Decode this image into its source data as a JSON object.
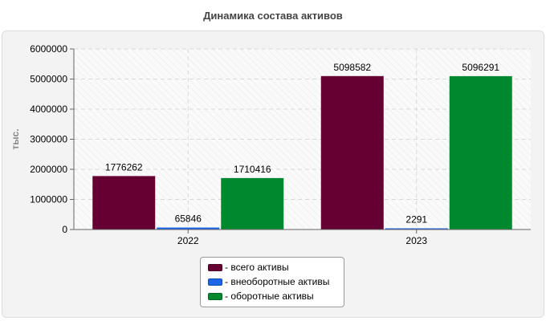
{
  "chart_data": {
    "type": "bar",
    "title": "Динамика состава активов",
    "ylabel": "тыс.",
    "xlabel": "",
    "categories": [
      "2022",
      "2023"
    ],
    "ylim": [
      0,
      6000000
    ],
    "yticks": [
      "0",
      "1000000",
      "2000000",
      "3000000",
      "4000000",
      "5000000",
      "6000000"
    ],
    "grid": true,
    "legend_position": "bottom-center",
    "series": [
      {
        "name": "- всего активы",
        "color": "#660033",
        "values": [
          1776262,
          5098582
        ]
      },
      {
        "name": "- внеоборотные активы",
        "color": "#1a66e6",
        "values": [
          65846,
          2291
        ]
      },
      {
        "name": "- оборотные активы",
        "color": "#00882f",
        "values": [
          1710416,
          5096291
        ]
      }
    ]
  }
}
